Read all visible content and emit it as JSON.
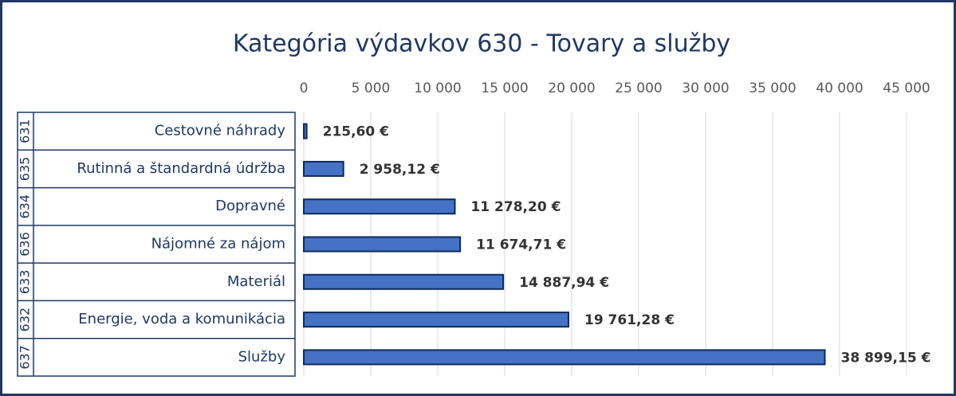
{
  "chart_data": {
    "type": "bar",
    "orientation": "horizontal",
    "title": "Kategória výdavkov 630 - Tovary  a  služby",
    "codes": [
      "631",
      "635",
      "634",
      "636",
      "633",
      "632",
      "637"
    ],
    "categories": [
      "Cestovné náhrady",
      "Rutinná a štandardná údržba",
      "Dopravné",
      "Nájomné za nájom",
      "Materiál",
      "Energie, voda a komunikácia",
      "Služby"
    ],
    "values": [
      215.6,
      2958.12,
      11278.2,
      11674.71,
      14887.94,
      19761.28,
      38899.15
    ],
    "value_labels": [
      "215,60 €",
      "2 958,12 €",
      "11 278,20 €",
      "11 674,71 €",
      "14 887,94 €",
      "19 761,28 €",
      "38 899,15 €"
    ],
    "color": "#4472c4",
    "xlim": [
      0,
      45000
    ],
    "xticks": [
      0,
      {
        "value": 5000,
        "label": "5 000"
      },
      {
        "value": 10000,
        "label": "10 000"
      },
      {
        "value": 15000,
        "label": "15 000"
      },
      {
        "value": 20000,
        "label": "20 000"
      },
      {
        "value": 25000,
        "label": "25 000"
      },
      {
        "value": 30000,
        "label": "30 000"
      },
      {
        "value": 35000,
        "label": "35 000"
      },
      {
        "value": 40000,
        "label": "40 000"
      },
      {
        "value": 45000,
        "label": "45 000"
      }
    ],
    "grid": true
  }
}
